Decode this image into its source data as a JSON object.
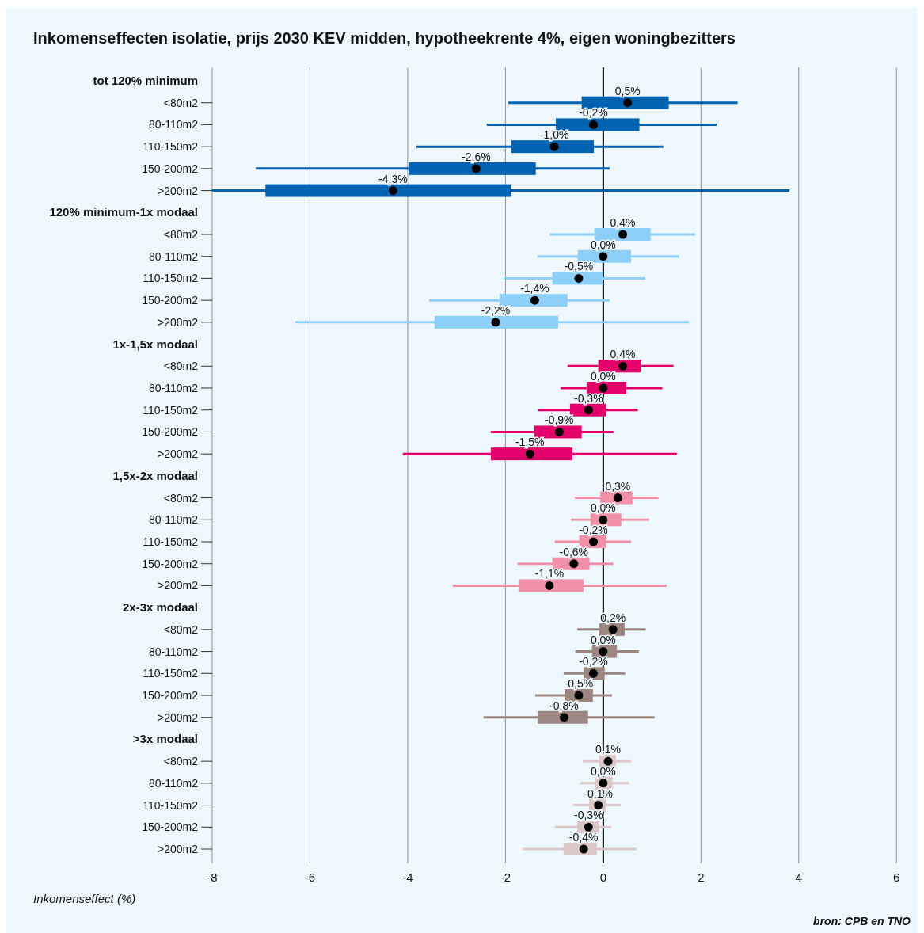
{
  "chart_data": {
    "type": "box",
    "orientation": "horizontal",
    "title": "Inkomenseffecten isolatie, prijs 2030 KEV midden, hypotheekrente 4%, eigen woningbezitters",
    "xlabel": "Inkomenseffect (%)",
    "annotations": [
      "bron: CPB en TNO"
    ],
    "categories": [
      "tot 120% minimum",
      "<80m2",
      "80-110m2",
      "110-150m2",
      "150-200m2",
      ">200m2",
      "120% minimum-1x modaal",
      "<80m2",
      "80-110m2",
      "110-150m2",
      "150-200m2",
      ">200m2",
      "1x-1,5x modaal",
      "<80m2",
      "80-110m2",
      "110-150m2",
      "150-200m2",
      ">200m2",
      "1,5x-2x modaal",
      "<80m2",
      "80-110m2",
      "110-150m2",
      "150-200m2",
      ">200m2",
      "2x-3x modaal",
      "<80m2",
      "80-110m2",
      "110-150m2",
      "150-200m2",
      ">200m2",
      ">3x modaal",
      "<80m2",
      "80-110m2",
      "110-150m2",
      "150-200m2",
      ">200m2"
    ],
    "boxes": [
      null,
      {
        "low": -1.94,
        "q1": -0.44,
        "median": 0.5,
        "q3": 1.34,
        "high": 2.75
      },
      {
        "low": -2.38,
        "q1": -0.97,
        "median": -0.2,
        "q3": 0.74,
        "high": 2.32
      },
      {
        "low": -3.82,
        "q1": -1.88,
        "median": -1.0,
        "q3": -0.19,
        "high": 1.23
      },
      {
        "low": -7.11,
        "q1": -3.98,
        "median": -2.6,
        "q3": -1.38,
        "high": 0.13
      },
      {
        "low": -8.0,
        "q1": -6.91,
        "median": -4.3,
        "q3": -1.89,
        "high": 3.81
      },
      null,
      {
        "low": -1.09,
        "q1": -0.18,
        "median": 0.4,
        "q3": 0.97,
        "high": 1.88
      },
      {
        "low": -1.34,
        "q1": -0.52,
        "median": 0.0,
        "q3": 0.57,
        "high": 1.55
      },
      {
        "low": -2.04,
        "q1": -1.04,
        "median": -0.5,
        "q3": 0.0,
        "high": 0.86
      },
      {
        "low": -3.56,
        "q1": -2.12,
        "median": -1.4,
        "q3": -0.73,
        "high": 0.13
      },
      {
        "low": -6.3,
        "q1": -3.45,
        "median": -2.2,
        "q3": -0.92,
        "high": 1.75
      },
      null,
      {
        "low": -0.73,
        "q1": -0.1,
        "median": 0.4,
        "q3": 0.78,
        "high": 1.44
      },
      {
        "low": -0.87,
        "q1": -0.34,
        "median": 0.0,
        "q3": 0.47,
        "high": 1.21
      },
      {
        "low": -1.33,
        "q1": -0.68,
        "median": -0.3,
        "q3": 0.06,
        "high": 0.71
      },
      {
        "low": -2.3,
        "q1": -1.41,
        "median": -0.9,
        "q3": -0.44,
        "high": 0.21
      },
      {
        "low": -4.1,
        "q1": -2.3,
        "median": -1.5,
        "q3": -0.63,
        "high": 1.51
      },
      null,
      {
        "low": -0.58,
        "q1": -0.06,
        "median": 0.3,
        "q3": 0.6,
        "high": 1.13
      },
      {
        "low": -0.66,
        "q1": -0.26,
        "median": 0.0,
        "q3": 0.37,
        "high": 0.94
      },
      {
        "low": -0.99,
        "q1": -0.49,
        "median": -0.2,
        "q3": 0.06,
        "high": 0.57
      },
      {
        "low": -1.75,
        "q1": -1.04,
        "median": -0.6,
        "q3": -0.28,
        "high": 0.21
      },
      {
        "low": -3.08,
        "q1": -1.72,
        "median": -1.1,
        "q3": -0.4,
        "high": 1.3
      },
      null,
      {
        "low": -0.53,
        "q1": -0.08,
        "median": 0.2,
        "q3": 0.44,
        "high": 0.87
      },
      {
        "low": -0.57,
        "q1": -0.23,
        "median": 0.0,
        "q3": 0.28,
        "high": 0.73
      },
      {
        "low": -0.81,
        "q1": -0.4,
        "median": -0.2,
        "q3": 0.03,
        "high": 0.45
      },
      {
        "low": -1.39,
        "q1": -0.79,
        "median": -0.5,
        "q3": -0.21,
        "high": 0.18
      },
      {
        "low": -2.45,
        "q1": -1.34,
        "median": -0.8,
        "q3": -0.31,
        "high": 1.05
      },
      null,
      {
        "low": -0.42,
        "q1": -0.08,
        "median": 0.1,
        "q3": 0.26,
        "high": 0.57
      },
      {
        "low": -0.47,
        "q1": -0.16,
        "median": 0.0,
        "q3": 0.19,
        "high": 0.53
      },
      {
        "low": -0.62,
        "q1": -0.29,
        "median": -0.1,
        "q3": 0.06,
        "high": 0.36
      },
      {
        "low": -0.99,
        "q1": -0.53,
        "median": -0.3,
        "q3": -0.08,
        "high": 0.16
      },
      {
        "low": -1.64,
        "q1": -0.81,
        "median": -0.4,
        "q3": -0.13,
        "high": 0.68
      }
    ],
    "colors": [
      null,
      "#0062b1",
      "#0062b1",
      "#0062b1",
      "#0062b1",
      "#0062b1",
      null,
      "#8dcff9",
      "#8dcff9",
      "#8dcff9",
      "#8dcff9",
      "#8dcff9",
      null,
      "#e2006b",
      "#e2006b",
      "#e2006b",
      "#e2006b",
      "#e2006b",
      null,
      "#f290a9",
      "#f290a9",
      "#f290a9",
      "#f290a9",
      "#f290a9",
      null,
      "#9b8681",
      "#9b8681",
      "#9b8681",
      "#9b8681",
      "#9b8681",
      null,
      "#dac9c8",
      "#dac9c8",
      "#dac9c8",
      "#dac9c8",
      "#dac9c8"
    ],
    "value_labels": [
      null,
      "0,5%",
      "-0,2%",
      "-1,0%",
      "-2,6%",
      "-4,3%",
      null,
      "0,4%",
      "0,0%",
      "-0,5%",
      "-1,4%",
      "-2,2%",
      null,
      "0,4%",
      "0,0%",
      "-0,3%",
      "-0,9%",
      "-1,5%",
      null,
      "0,3%",
      "0,0%",
      "-0,2%",
      "-0,6%",
      "-1,1%",
      null,
      "0,2%",
      "0,0%",
      "-0,2%",
      "-0,5%",
      "-0,8%",
      null,
      "0,1%",
      "0,0%",
      "-0,1%",
      "-0,3%",
      "-0,4%"
    ],
    "xlim": [
      -8,
      6.45
    ],
    "xticks": [
      -8,
      -6,
      -4,
      -2,
      0,
      2,
      4,
      6
    ],
    "grid": "x",
    "ref_lines": [
      {
        "axis": "x",
        "value": 0,
        "color": "#000000"
      }
    ]
  }
}
